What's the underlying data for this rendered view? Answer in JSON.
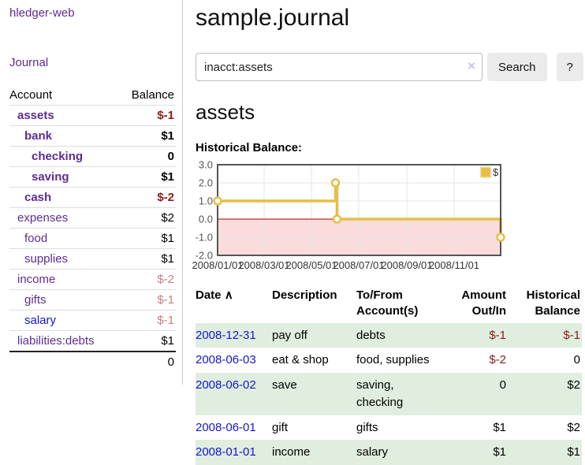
{
  "sidebar": {
    "app_title": "hledger-web",
    "journal_label": "Journal",
    "table": {
      "account_header": "Account",
      "balance_header": "Balance",
      "rows": [
        {
          "name": "assets",
          "balance": "$-1",
          "indent": 1,
          "bold": true,
          "balance_tone": "dark",
          "link_tone": "purple"
        },
        {
          "name": "bank",
          "balance": "$1",
          "indent": 2,
          "bold": true,
          "balance_tone": "normal",
          "link_tone": "purple"
        },
        {
          "name": "checking",
          "balance": "0",
          "indent": 3,
          "bold": true,
          "balance_tone": "normal",
          "link_tone": "purple"
        },
        {
          "name": "saving",
          "balance": "$1",
          "indent": 3,
          "bold": true,
          "balance_tone": "normal",
          "link_tone": "purple"
        },
        {
          "name": "cash",
          "balance": "$-2",
          "indent": 2,
          "bold": true,
          "balance_tone": "dark",
          "link_tone": "purple"
        },
        {
          "name": "expenses",
          "balance": "$2",
          "indent": 1,
          "bold": false,
          "balance_tone": "normal",
          "link_tone": "purple"
        },
        {
          "name": "food",
          "balance": "$1",
          "indent": 2,
          "bold": false,
          "balance_tone": "normal",
          "link_tone": "purple"
        },
        {
          "name": "supplies",
          "balance": "$1",
          "indent": 2,
          "bold": false,
          "balance_tone": "normal",
          "link_tone": "purple"
        },
        {
          "name": "income",
          "balance": "$-2",
          "indent": 1,
          "bold": false,
          "balance_tone": "light",
          "link_tone": "purple"
        },
        {
          "name": "gifts",
          "balance": "$-1",
          "indent": 2,
          "bold": false,
          "balance_tone": "light",
          "link_tone": "purple"
        },
        {
          "name": "salary",
          "balance": "$-1",
          "indent": 2,
          "bold": false,
          "balance_tone": "light",
          "link_tone": "blue"
        },
        {
          "name": "liabilities:debts",
          "balance": "$1",
          "indent": 1,
          "bold": false,
          "balance_tone": "normal",
          "link_tone": "purple"
        }
      ],
      "total": "0"
    }
  },
  "main": {
    "title": "sample.journal",
    "search": {
      "value": "inacct:assets",
      "clear_icon": "×",
      "button_label": "Search",
      "help_label": "?"
    },
    "account_heading": "assets",
    "chart_label": "Historical Balance:"
  },
  "chart_data": {
    "type": "line",
    "step": "after",
    "title": "Historical Balance:",
    "xmin": "2008-01-01",
    "xmax": "2008-12-31",
    "ylim": [
      -2,
      3
    ],
    "yticks": [
      3.0,
      2.0,
      1.0,
      0.0,
      -1.0,
      -2.0
    ],
    "xticks": [
      "2008/01/01",
      "2008/03/01",
      "2008/05/01",
      "2008/07/01",
      "2008/09/01",
      "2008/11/01"
    ],
    "series": [
      {
        "name": "$",
        "color": "#e6be48",
        "x": [
          "2008-01-01",
          "2008-06-01",
          "2008-06-03",
          "2008-12-31"
        ],
        "values": [
          1,
          2,
          0,
          -1
        ]
      }
    ],
    "grid_on": true,
    "grid_color": "#e4e4e4",
    "border_color": "#545454",
    "negative_region_color": "#fbdcdc",
    "zero_line_color": "#a00000",
    "legend": {
      "label": "$",
      "position": "top-right"
    }
  },
  "transactions": {
    "headers": {
      "date": "Date",
      "date_sort_icon": "∧",
      "description": "Description",
      "accounts": "To/From Account(s)",
      "amount": "Amount Out/In",
      "balance": "Historical Balance"
    },
    "rows": [
      {
        "date": "2008-12-31",
        "description": "pay off",
        "accounts": "debts",
        "amount": "$-1",
        "balance": "$-1",
        "amount_negative": true,
        "balance_negative": true
      },
      {
        "date": "2008-06-03",
        "description": "eat & shop",
        "accounts": "food, supplies",
        "amount": "$-2",
        "balance": "0",
        "amount_negative": true,
        "balance_negative": false
      },
      {
        "date": "2008-06-02",
        "description": "save",
        "accounts": "saving, checking",
        "amount": "0",
        "balance": "$2",
        "amount_negative": false,
        "balance_negative": false
      },
      {
        "date": "2008-06-01",
        "description": "gift",
        "accounts": "gifts",
        "amount": "$1",
        "balance": "$2",
        "amount_negative": false,
        "balance_negative": false
      },
      {
        "date": "2008-01-01",
        "description": "income",
        "accounts": "salary",
        "amount": "$1",
        "balance": "$1",
        "amount_negative": false,
        "balance_negative": false
      }
    ]
  }
}
